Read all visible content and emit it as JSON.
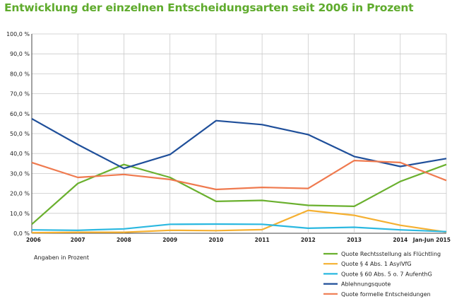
{
  "chart_data": {
    "type": "line",
    "title": "Entwicklung der einzelnen Entscheidungsarten seit 2006 in Prozent",
    "note": "Angaben in Prozent",
    "x": [
      "2006",
      "2007",
      "2008",
      "2009",
      "2010",
      "2011",
      "2012",
      "2013",
      "2014",
      "Jan-Jun 2015"
    ],
    "y_ticks": [
      "0,0 %",
      "10,0 %",
      "20,0 %",
      "30,0 %",
      "40,0 %",
      "50,0 %",
      "60,0 %",
      "70,0 %",
      "80,0 %",
      "90,0 %",
      "100,0 %"
    ],
    "ylim": [
      0,
      100
    ],
    "grid": true,
    "legend_position": "bottom-right",
    "series": [
      {
        "name": "Quote Rechtsstellung als Flüchtling",
        "color": "#6ab02e",
        "values": [
          4.5,
          25.0,
          34.5,
          28.0,
          16.0,
          16.5,
          14.0,
          13.5,
          26.0,
          34.5
        ]
      },
      {
        "name": "Quote § 4 Abs. 1 AsylVfG",
        "color": "#f5b031",
        "values": [
          0.3,
          0.5,
          0.5,
          1.5,
          1.3,
          1.8,
          11.5,
          9.0,
          4.0,
          0.6
        ]
      },
      {
        "name": "Quote § 60 Abs. 5 o. 7 AufenthG",
        "color": "#2bb8e0",
        "values": [
          1.7,
          1.5,
          2.2,
          4.5,
          4.6,
          4.5,
          2.5,
          3.0,
          1.7,
          0.8
        ]
      },
      {
        "name": "Ablehnungsquote",
        "color": "#1f4f9a",
        "values": [
          57.5,
          44.5,
          32.5,
          39.5,
          56.5,
          54.5,
          49.5,
          38.5,
          33.5,
          37.5
        ]
      },
      {
        "name": "Quote formelle Entscheidungen",
        "color": "#ef7a4f",
        "values": [
          35.5,
          28.0,
          29.5,
          27.0,
          22.0,
          23.0,
          22.5,
          36.5,
          35.5,
          26.5
        ]
      }
    ]
  }
}
